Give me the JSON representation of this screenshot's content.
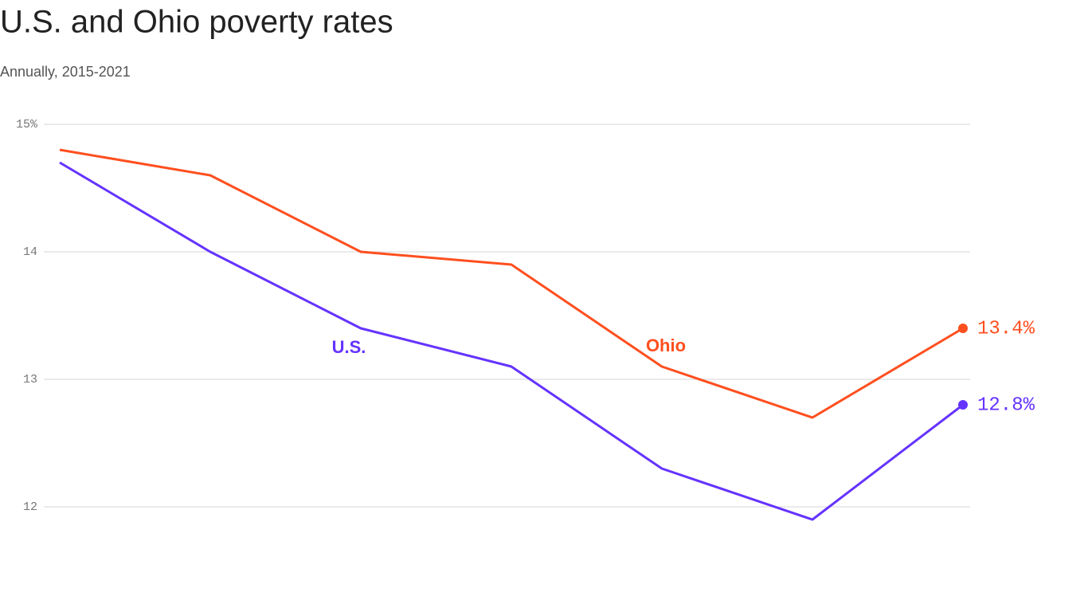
{
  "chart_data": {
    "type": "line",
    "title": "U.S. and Ohio poverty rates",
    "subtitle": "Annually, 2015-2021",
    "categories": [
      null,
      null,
      null,
      null,
      null,
      null,
      null
    ],
    "series": [
      {
        "name": "U.S.",
        "color": "#6533ff",
        "values": [
          14.7,
          14.0,
          13.4,
          13.1,
          12.3,
          11.9,
          12.8
        ],
        "value_labels": [
          null,
          null,
          null,
          null,
          null,
          null,
          "12.8%"
        ]
      },
      {
        "name": "Ohio",
        "color": "#ff4f1f",
        "values": [
          14.8,
          14.6,
          14.0,
          13.9,
          13.1,
          12.7,
          13.4
        ],
        "value_labels": [
          null,
          null,
          null,
          null,
          null,
          null,
          "13.4%"
        ]
      }
    ],
    "ylim": [
      11.5,
      15
    ],
    "yticks": [
      {
        "value": 15,
        "label": "15%"
      },
      14,
      13,
      12
    ],
    "grid": true
  }
}
